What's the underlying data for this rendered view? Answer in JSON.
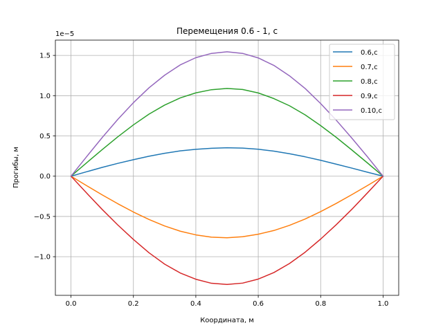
{
  "chart_data": {
    "type": "line",
    "title": "Перемещения 0.6 - 1, с",
    "xlabel": "Координата, м",
    "ylabel": "Прогибы, м",
    "offset_text": "1e−5",
    "y_scale": 1e-05,
    "xlim": [
      -0.05,
      1.05
    ],
    "ylim": [
      -1.48,
      1.69
    ],
    "grid": true,
    "legend_position": "top-right",
    "x_ticks": [
      0.0,
      0.2,
      0.4,
      0.6,
      0.8,
      1.0
    ],
    "x_tick_labels": [
      "0.0",
      "0.2",
      "0.4",
      "0.6",
      "0.8",
      "1.0"
    ],
    "y_ticks": [
      -1.0,
      -0.5,
      0.0,
      0.5,
      1.0,
      1.5
    ],
    "y_tick_labels": [
      "−1.0",
      "−0.5",
      "0.0",
      "0.5",
      "1.0",
      "1.5"
    ],
    "x": [
      0.0,
      0.05,
      0.1,
      0.15,
      0.2,
      0.25,
      0.3,
      0.35,
      0.4,
      0.45,
      0.5,
      0.55,
      0.6,
      0.65,
      0.7,
      0.75,
      0.8,
      0.85,
      0.9,
      0.95,
      1.0
    ],
    "series": [
      {
        "name": "0.6,c",
        "color": "#1f77b4",
        "values": [
          0.0,
          0.055,
          0.109,
          0.159,
          0.205,
          0.248,
          0.284,
          0.314,
          0.334,
          0.347,
          0.353,
          0.349,
          0.335,
          0.311,
          0.279,
          0.241,
          0.197,
          0.149,
          0.1,
          0.049,
          0.0
        ]
      },
      {
        "name": "0.7,c",
        "color": "#ff7f0e",
        "values": [
          0.0,
          -0.117,
          -0.232,
          -0.342,
          -0.445,
          -0.538,
          -0.618,
          -0.683,
          -0.729,
          -0.757,
          -0.765,
          -0.752,
          -0.721,
          -0.675,
          -0.611,
          -0.532,
          -0.44,
          -0.338,
          -0.229,
          -0.116,
          0.0
        ]
      },
      {
        "name": "0.8,c",
        "color": "#2ca02c",
        "values": [
          0.0,
          0.166,
          0.33,
          0.489,
          0.637,
          0.771,
          0.883,
          0.972,
          1.035,
          1.074,
          1.09,
          1.077,
          1.034,
          0.964,
          0.875,
          0.762,
          0.628,
          0.482,
          0.325,
          0.164,
          0.0
        ]
      },
      {
        "name": "0.9,c",
        "color": "#d62728",
        "values": [
          0.0,
          -0.209,
          -0.413,
          -0.606,
          -0.786,
          -0.951,
          -1.092,
          -1.202,
          -1.28,
          -1.33,
          -1.345,
          -1.328,
          -1.278,
          -1.197,
          -1.085,
          -0.945,
          -0.781,
          -0.602,
          -0.411,
          -0.207,
          0.0
        ]
      },
      {
        "name": "0.10,c",
        "color": "#9467bd",
        "values": [
          0.0,
          0.242,
          0.48,
          0.705,
          0.913,
          1.098,
          1.254,
          1.382,
          1.472,
          1.525,
          1.545,
          1.525,
          1.469,
          1.376,
          1.247,
          1.09,
          0.902,
          0.695,
          0.472,
          0.24,
          0.0
        ]
      }
    ]
  }
}
